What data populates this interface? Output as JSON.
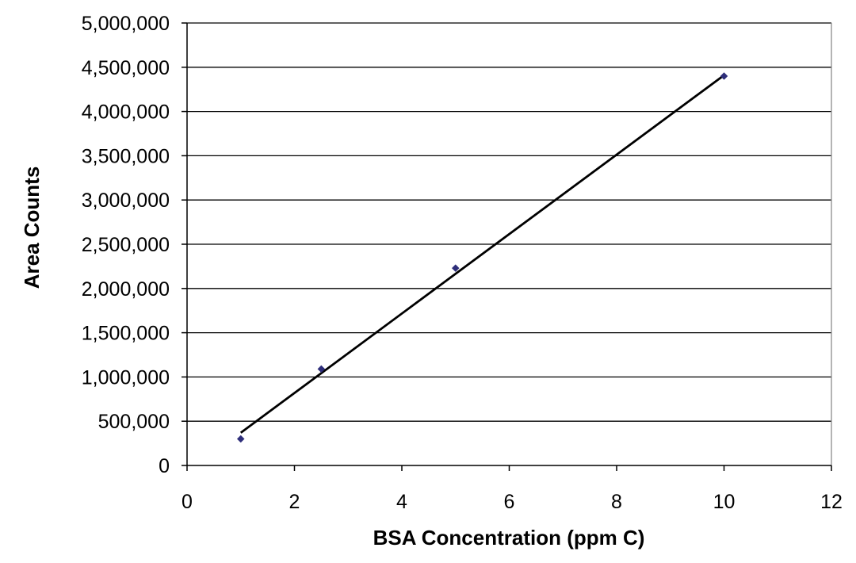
{
  "chart_data": {
    "type": "scatter",
    "title": "",
    "xlabel": "BSA Concentration (ppm C)",
    "ylabel": "Area Counts",
    "xlim": [
      0,
      12
    ],
    "ylim": [
      0,
      5000000
    ],
    "x_ticks": [
      0,
      2,
      4,
      6,
      8,
      10,
      12
    ],
    "y_ticks": [
      0,
      500000,
      1000000,
      1500000,
      2000000,
      2500000,
      3000000,
      3500000,
      4000000,
      4500000,
      5000000
    ],
    "x_tick_labels": [
      "0",
      "2",
      "4",
      "6",
      "8",
      "10",
      "12"
    ],
    "y_tick_labels": [
      "0",
      "500,000",
      "1,000,000",
      "1,500,000",
      "2,000,000",
      "2,500,000",
      "3,000,000",
      "3,500,000",
      "4,000,000",
      "4,500,000",
      "5,000,000"
    ],
    "grid": "horizontal",
    "legend": "none",
    "series": [
      {
        "marker": "diamond",
        "color": "#2e2e7a",
        "x": [
          1,
          2.5,
          5,
          10
        ],
        "y": [
          300000,
          1090000,
          2230000,
          4400000
        ]
      }
    ],
    "trendline": {
      "type": "linear",
      "color": "#000000",
      "x": [
        1,
        10
      ],
      "y": [
        370000,
        4410000
      ]
    }
  }
}
